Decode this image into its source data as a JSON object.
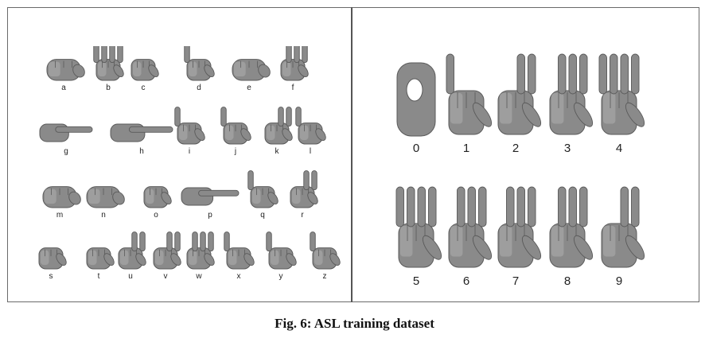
{
  "caption": {
    "label": "Fig. 6:",
    "text": "ASL training dataset"
  },
  "letters": {
    "rows": [
      [
        "a",
        "b",
        "c",
        "d",
        "e",
        "f"
      ],
      [
        "g",
        "h",
        "i",
        "j",
        "k",
        "l"
      ],
      [
        "m",
        "n",
        "o",
        "p",
        "q",
        "r"
      ],
      [
        "s",
        "t",
        "u",
        "v",
        "w",
        "x",
        "y",
        "z"
      ]
    ]
  },
  "digits": {
    "rows": [
      [
        "0",
        "1",
        "2",
        "3",
        "4"
      ],
      [
        "5",
        "6",
        "7",
        "8",
        "9"
      ]
    ]
  },
  "colors": {
    "frame": "#6a6a6a",
    "hand_fill": "#8a8a8a",
    "hand_shadow": "#5a5a5a",
    "hand_highlight": "#b5b5b5"
  }
}
